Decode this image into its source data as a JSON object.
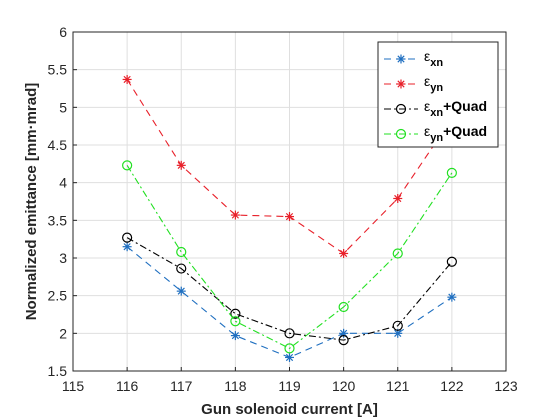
{
  "chart_data": {
    "type": "line",
    "xlabel": "Gun solenoid current [A]",
    "ylabel": "Normalized emittance [mm·mrad]",
    "xlim": [
      115,
      123
    ],
    "ylim": [
      1.5,
      6
    ],
    "xticks": [
      115,
      116,
      117,
      118,
      119,
      120,
      121,
      122,
      123
    ],
    "yticks": [
      1.5,
      2,
      2.5,
      3,
      3.5,
      4,
      4.5,
      5,
      5.5,
      6
    ],
    "xtick_labels": [
      "115",
      "116",
      "117",
      "118",
      "119",
      "120",
      "121",
      "122",
      "123"
    ],
    "ytick_labels": [
      "1.5",
      "2",
      "2.5",
      "3",
      "3.5",
      "4",
      "4.5",
      "5",
      "5.5",
      "6"
    ],
    "grid": true,
    "legend_position": "top-right",
    "x": [
      116,
      117,
      118,
      119,
      120,
      121,
      122
    ],
    "series": [
      {
        "name": "εxn",
        "legend_main": "ε",
        "legend_sub": "xn",
        "legend_suffix": "",
        "values": [
          3.15,
          2.56,
          1.97,
          1.68,
          2.0,
          2.0,
          2.48
        ],
        "color": "#1f6fc0",
        "dash": "7,5",
        "marker": "asterisk"
      },
      {
        "name": "εyn",
        "legend_main": "ε",
        "legend_sub": "yn",
        "legend_suffix": "",
        "values": [
          5.37,
          4.23,
          3.57,
          3.55,
          3.06,
          3.79,
          4.85
        ],
        "color": "#e8202a",
        "dash": "7,5",
        "marker": "asterisk"
      },
      {
        "name": "εxn+Quad",
        "legend_main": "ε",
        "legend_sub": "xn",
        "legend_suffix": "+Quad",
        "values": [
          3.27,
          2.86,
          2.26,
          2.0,
          1.91,
          2.1,
          2.95
        ],
        "color": "#000000",
        "dash": "7,3,2,3",
        "marker": "circle"
      },
      {
        "name": "εyn+Quad",
        "legend_main": "ε",
        "legend_sub": "yn",
        "legend_suffix": "+Quad",
        "values": [
          4.23,
          3.08,
          2.16,
          1.8,
          2.35,
          3.06,
          4.13
        ],
        "color": "#22e022",
        "dash": "7,3,2,3",
        "marker": "circle"
      }
    ]
  }
}
